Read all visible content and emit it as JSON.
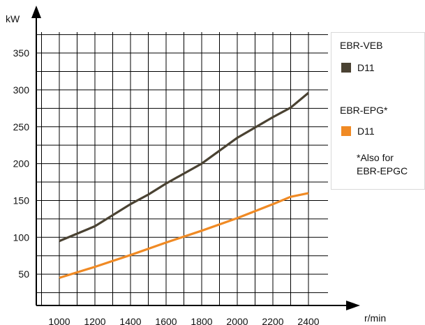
{
  "chart_data": {
    "type": "line",
    "ylabel": "kW",
    "xlabel": "r/min",
    "x": [
      1000,
      1200,
      1400,
      1600,
      1800,
      2000,
      2200,
      2400
    ],
    "y_ticks": [
      50,
      100,
      150,
      200,
      250,
      300,
      350
    ],
    "xlim": [
      900,
      2450
    ],
    "ylim": [
      0,
      375
    ],
    "grid": true,
    "legend_position": "right",
    "legend_groups": [
      "EBR-VEB",
      "EBR-EPG*"
    ],
    "legend_note": [
      "*Also for",
      "EBR-EPGC"
    ],
    "series": [
      {
        "name": "D11",
        "group": "EBR-VEB",
        "color": "#4a4232",
        "points": [
          [
            1000,
            95
          ],
          [
            1200,
            115
          ],
          [
            1400,
            145
          ],
          [
            1500,
            158
          ],
          [
            1600,
            173
          ],
          [
            1800,
            200
          ],
          [
            2000,
            235
          ],
          [
            2200,
            263
          ],
          [
            2300,
            276
          ],
          [
            2400,
            296
          ]
        ]
      },
      {
        "name": "D11",
        "group": "EBR-EPG*",
        "color": "#f08a24",
        "points": [
          [
            1000,
            45
          ],
          [
            1200,
            60
          ],
          [
            1400,
            76
          ],
          [
            1600,
            93
          ],
          [
            1800,
            109
          ],
          [
            2000,
            126
          ],
          [
            2200,
            145
          ],
          [
            2300,
            155
          ],
          [
            2400,
            160
          ]
        ]
      }
    ]
  }
}
